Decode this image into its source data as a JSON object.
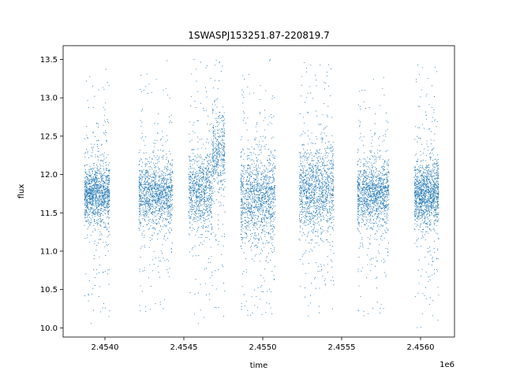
{
  "chart_data": {
    "type": "scatter",
    "title": "1SWASPJ153251.87-220819.7",
    "xlabel": "time",
    "ylabel": "flux",
    "x_offset_label": "1e6",
    "xlim": [
      2453735,
      2456215
    ],
    "ylim": [
      9.88,
      13.68
    ],
    "x_ticks": [
      2454000,
      2454500,
      2455000,
      2455500,
      2456000
    ],
    "x_tick_labels": [
      "2.4540",
      "2.4545",
      "2.4550",
      "2.4555",
      "2.4560"
    ],
    "y_ticks": [
      10.0,
      10.5,
      11.0,
      11.5,
      12.0,
      12.5,
      13.0,
      13.5
    ],
    "y_tick_labels": [
      "10.0",
      "10.5",
      "11.0",
      "11.5",
      "12.0",
      "12.5",
      "13.0",
      "13.5"
    ],
    "grid": false,
    "legend": "none",
    "marker_color": "#1f77b4",
    "seasons": [
      {
        "x_start": 2453870,
        "x_end": 2454030,
        "flux_center": 11.75,
        "core_spread": 0.18,
        "y_min": 10.05,
        "y_max": 13.42
      },
      {
        "x_start": 2454215,
        "x_end": 2454430,
        "flux_center": 11.75,
        "core_spread": 0.2,
        "y_min": 10.1,
        "y_max": 13.52
      },
      {
        "x_start": 2454530,
        "x_end": 2454760,
        "flux_center": 11.8,
        "core_spread": 0.25,
        "y_min": 10.05,
        "y_max": 13.52,
        "flare": {
          "x_start": 2454680,
          "x_end": 2454760,
          "flux_center": 12.25
        }
      },
      {
        "x_start": 2454860,
        "x_end": 2455080,
        "flux_center": 11.7,
        "core_spread": 0.28,
        "y_min": 10.05,
        "y_max": 13.52
      },
      {
        "x_start": 2455230,
        "x_end": 2455450,
        "flux_center": 11.8,
        "core_spread": 0.28,
        "y_min": 10.15,
        "y_max": 13.48
      },
      {
        "x_start": 2455600,
        "x_end": 2455800,
        "flux_center": 11.75,
        "core_spread": 0.2,
        "y_min": 10.05,
        "y_max": 13.3
      },
      {
        "x_start": 2455960,
        "x_end": 2456115,
        "flux_center": 11.75,
        "core_spread": 0.2,
        "y_min": 10.0,
        "y_max": 13.45
      }
    ]
  }
}
